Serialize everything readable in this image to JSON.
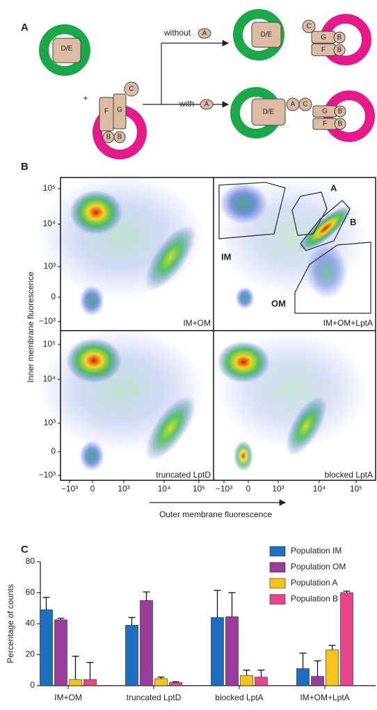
{
  "panel_labels": [
    "A",
    "B",
    "C"
  ],
  "diagram": {
    "start_om": [
      "D/E"
    ],
    "plus": "+",
    "start_im": [
      "F",
      "G",
      "C",
      "B",
      "B"
    ],
    "without": [
      "without",
      "A"
    ],
    "with": [
      "with",
      "A"
    ],
    "without_om": [
      "D/E"
    ],
    "without_im": [
      "C",
      "G",
      "B",
      "F",
      "B"
    ],
    "with_complex": [
      "D/E",
      "A",
      "C",
      "G",
      "B",
      "F",
      "B"
    ]
  },
  "flow": {
    "y_label": "Inner membrane fluorescence",
    "x_label": "Outer membrane fluorescence",
    "yticks": [
      "10⁵",
      "10⁴",
      "10³",
      "0",
      "−10³"
    ],
    "xticks": [
      "−10³",
      "0",
      "10³",
      "10⁴",
      "10⁵"
    ],
    "plots": [
      "IM+OM",
      "IM+OM+LptA",
      "truncated LptD",
      "blocked LptA"
    ],
    "gates": [
      "IM",
      "A",
      "B",
      "OM"
    ]
  },
  "chart_data": {
    "type": "bar",
    "y_label": "Percentage of counts",
    "categories": [
      "IM+OM",
      "truncated LptD",
      "blocked LptA",
      "IM+OM+LptA"
    ],
    "series": [
      {
        "name": "Population IM",
        "color": "#1f6fc0",
        "values": [
          49,
          39,
          44,
          11
        ],
        "errors": [
          8,
          5,
          17.5,
          10
        ]
      },
      {
        "name": "Population OM",
        "color": "#9a3c9c",
        "values": [
          42.5,
          55,
          44.5,
          6
        ],
        "errors": [
          1,
          5.5,
          15.5,
          10
        ]
      },
      {
        "name": "Population A",
        "color": "#f6c21c",
        "values": [
          4,
          4.5,
          6.5,
          23
        ],
        "errors": [
          15,
          1,
          3.5,
          3
        ]
      },
      {
        "name": "Population B",
        "color": "#e8468c",
        "values": [
          4,
          2,
          5.5,
          60
        ],
        "errors": [
          11,
          0.5,
          4.5,
          1
        ]
      }
    ],
    "ylim": [
      0,
      80
    ],
    "yticks": [
      0,
      20,
      40,
      60,
      80
    ],
    "legend": "top-right"
  }
}
